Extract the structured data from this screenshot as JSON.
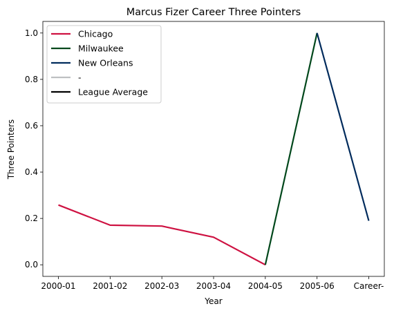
{
  "chart_data": {
    "type": "line",
    "title": "Marcus Fizer Career Three Pointers",
    "xlabel": "Year",
    "ylabel": "Three Pointers",
    "categories": [
      "2000-01",
      "2001-02",
      "2002-03",
      "2003-04",
      "2004-05",
      "2005-06",
      "Career-"
    ],
    "ylim": [
      -0.05,
      1.05
    ],
    "yticks": [
      0.0,
      0.2,
      0.4,
      0.6,
      0.8,
      1.0
    ],
    "ytick_labels": [
      "0.0",
      "0.2",
      "0.4",
      "0.6",
      "0.8",
      "1.0"
    ],
    "grid": false,
    "legend_position": "top-left",
    "series": [
      {
        "name": "Chicago",
        "color": "#CE1141",
        "values": [
          0.258,
          0.171,
          0.167,
          0.119,
          0.0,
          null,
          null
        ]
      },
      {
        "name": "Milwaukee",
        "color": "#00471B",
        "values": [
          null,
          null,
          null,
          null,
          0.0,
          1.0,
          null
        ]
      },
      {
        "name": "New Orleans",
        "color": "#002B5C",
        "values": [
          null,
          null,
          null,
          null,
          null,
          1.0,
          0.19
        ]
      },
      {
        "name": "-",
        "color": "#BEC0C2",
        "values": [
          null,
          null,
          null,
          null,
          null,
          null,
          null
        ]
      },
      {
        "name": "League Average",
        "color": "#000000",
        "values": [
          null,
          null,
          null,
          null,
          null,
          null,
          null
        ]
      }
    ]
  }
}
